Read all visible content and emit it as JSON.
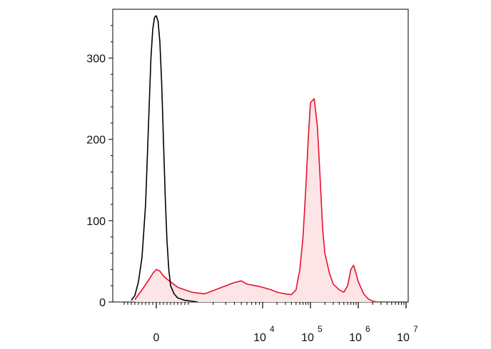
{
  "chart_data": {
    "type": "area",
    "title": "",
    "xlabel": "",
    "ylabel": "",
    "x_scale": "biexponential",
    "xlim": [
      -1000,
      10000000
    ],
    "ylim": [
      0,
      360
    ],
    "grid": false,
    "legend": "none",
    "y_ticks": [
      {
        "value": 0,
        "label": "0"
      },
      {
        "value": 100,
        "label": "100"
      },
      {
        "value": 200,
        "label": "200"
      },
      {
        "value": 300,
        "label": "300"
      }
    ],
    "x_ticks": [
      {
        "value": 0,
        "base": "0",
        "exp": ""
      },
      {
        "value": 10000,
        "base": "10",
        "exp": "4"
      },
      {
        "value": 100000,
        "base": "10",
        "exp": "5"
      },
      {
        "value": 1000000,
        "base": "10",
        "exp": "6"
      },
      {
        "value": 10000000,
        "base": "10",
        "exp": "7"
      }
    ],
    "series": [
      {
        "color": "#000000",
        "fill": "none",
        "x": [
          -700,
          -600,
          -500,
          -400,
          -300,
          -250,
          -200,
          -150,
          -100,
          -50,
          0,
          50,
          100,
          150,
          200,
          250,
          300,
          350,
          400,
          500,
          600,
          800,
          1000,
          1200
        ],
        "y": [
          2,
          8,
          25,
          55,
          120,
          180,
          240,
          300,
          335,
          350,
          352,
          345,
          320,
          270,
          200,
          130,
          75,
          40,
          20,
          10,
          5,
          2,
          1,
          0
        ]
      },
      {
        "color": "#e8112d",
        "fill": "#fde4e6",
        "x": [
          -600,
          -400,
          -200,
          -100,
          0,
          100,
          200,
          300,
          400,
          600,
          800,
          1000,
          1500,
          2000,
          3000,
          4000,
          5000,
          6000,
          8000,
          10000,
          15000,
          20000,
          30000,
          40000,
          50000,
          60000,
          70000,
          80000,
          90000,
          100000,
          120000,
          140000,
          160000,
          180000,
          200000,
          250000,
          300000,
          400000,
          500000,
          600000,
          700000,
          800000,
          900000,
          1000000,
          1300000,
          1600000,
          2000000,
          2500000
        ],
        "y": [
          3,
          15,
          28,
          35,
          40,
          38,
          32,
          28,
          25,
          18,
          15,
          12,
          10,
          14,
          20,
          24,
          26,
          22,
          20,
          18,
          15,
          12,
          10,
          9,
          15,
          40,
          80,
          140,
          200,
          245,
          250,
          215,
          150,
          90,
          60,
          35,
          22,
          15,
          12,
          20,
          40,
          45,
          35,
          25,
          10,
          4,
          1,
          0
        ]
      }
    ]
  }
}
